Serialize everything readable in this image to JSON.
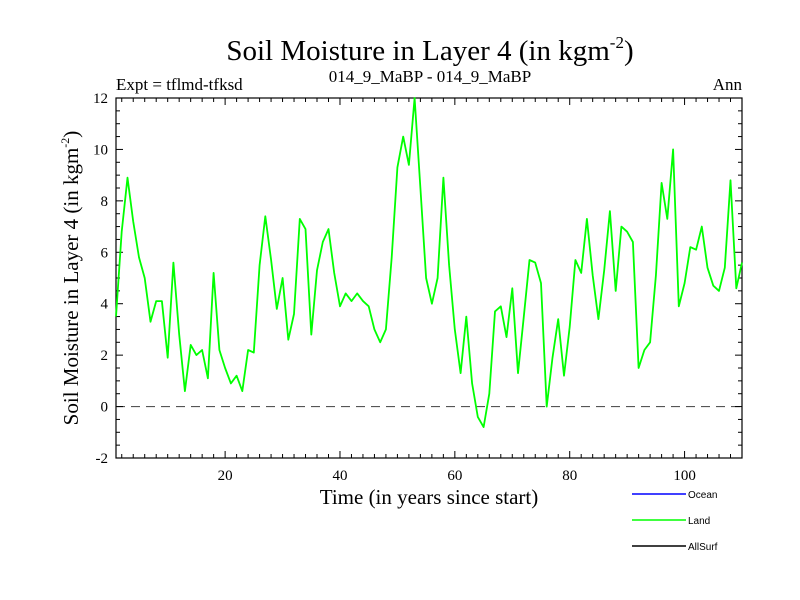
{
  "chart_data": {
    "type": "line",
    "title": "Soil Moisture in Layer 4 (in kgm",
    "title_superscript": "-2",
    "title_close": ")",
    "subtitle_left": "Expt = tflmd-tfksd",
    "subtitle_center": "014_9_MaBP - 014_9_MaBP",
    "subtitle_right": "Ann",
    "xlabel": "Time (in years since start)",
    "ylabel": "Soil Moisture in Layer 4 (in kgm",
    "ylabel_superscript": "-2",
    "ylabel_close": ")",
    "xlim": [
      1,
      110
    ],
    "ylim": [
      -2,
      12
    ],
    "xticks": [
      20,
      40,
      60,
      80,
      100
    ],
    "yticks": [
      -2,
      0,
      2,
      4,
      6,
      8,
      10,
      12
    ],
    "zero_line": true,
    "legend": [
      {
        "name": "Ocean",
        "color": "#0000ff"
      },
      {
        "name": "Land",
        "color": "#00ff00"
      },
      {
        "name": "AllSurf",
        "color": "#000000"
      }
    ],
    "series": [
      {
        "name": "Land",
        "color": "#00ff00",
        "x": [
          1,
          2,
          3,
          4,
          5,
          6,
          7,
          8,
          9,
          10,
          11,
          12,
          13,
          14,
          15,
          16,
          17,
          18,
          19,
          20,
          21,
          22,
          23,
          24,
          25,
          26,
          27,
          28,
          29,
          30,
          31,
          32,
          33,
          34,
          35,
          36,
          37,
          38,
          39,
          40,
          41,
          42,
          43,
          44,
          45,
          46,
          47,
          48,
          49,
          50,
          51,
          52,
          53,
          54,
          55,
          56,
          57,
          58,
          59,
          60,
          61,
          62,
          63,
          64,
          65,
          66,
          67,
          68,
          69,
          70,
          71,
          72,
          73,
          74,
          75,
          76,
          77,
          78,
          79,
          80,
          81,
          82,
          83,
          84,
          85,
          86,
          87,
          88,
          89,
          90,
          91,
          92,
          93,
          94,
          95,
          96,
          97,
          98,
          99,
          100,
          101,
          102,
          103,
          104,
          105,
          106,
          107,
          108,
          109,
          110
        ],
        "values": [
          3.5,
          6.8,
          8.9,
          7.2,
          5.8,
          5.0,
          3.3,
          4.1,
          4.1,
          1.9,
          5.6,
          2.8,
          0.6,
          2.4,
          2.0,
          2.2,
          1.1,
          5.2,
          2.2,
          1.5,
          0.9,
          1.2,
          0.6,
          2.2,
          2.1,
          5.5,
          7.4,
          5.7,
          3.8,
          5.0,
          2.6,
          3.6,
          7.3,
          6.9,
          2.8,
          5.3,
          6.4,
          6.9,
          5.2,
          3.9,
          4.4,
          4.1,
          4.4,
          4.1,
          3.9,
          3.0,
          2.5,
          3.0,
          5.8,
          9.3,
          10.5,
          9.4,
          12.0,
          8.5,
          5.0,
          4.0,
          5.0,
          8.9,
          5.5,
          3.0,
          1.3,
          3.5,
          0.9,
          -0.4,
          -0.8,
          0.5,
          3.7,
          3.9,
          2.7,
          4.6,
          1.3,
          3.5,
          5.7,
          5.6,
          4.8,
          0.0,
          1.9,
          3.4,
          1.2,
          3.1,
          5.7,
          5.2,
          7.3,
          5.1,
          3.4,
          5.3,
          7.6,
          4.5,
          7.0,
          6.8,
          6.4,
          1.5,
          2.2,
          2.5,
          5.1,
          8.7,
          7.3,
          10.0,
          3.9,
          4.8,
          6.2,
          6.1,
          7.0,
          5.4,
          4.7,
          4.5,
          5.4,
          8.8,
          4.6,
          5.6
        ]
      }
    ]
  }
}
